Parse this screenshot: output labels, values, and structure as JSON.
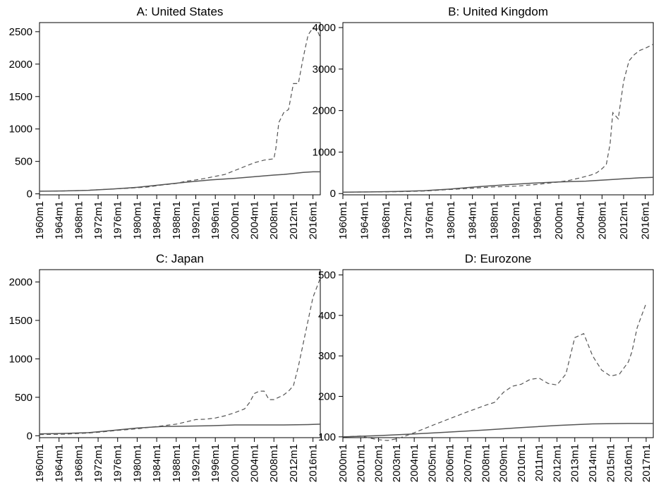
{
  "chart_data": [
    {
      "type": "line",
      "title": "A: United States",
      "xlabel": "",
      "ylabel": "",
      "x_ticks": [
        "1960m1",
        "1964m1",
        "1968m1",
        "1972m1",
        "1976m1",
        "1980m1",
        "1984m1",
        "1988m1",
        "1992m1",
        "1996m1",
        "2000m1",
        "2004m1",
        "2008m1",
        "2012m1",
        "2016m1"
      ],
      "xlim": [
        1960,
        2017.5
      ],
      "y_ticks": [
        0,
        500,
        1000,
        1500,
        2000,
        2500
      ],
      "ylim": [
        -15,
        2640
      ],
      "grid": false,
      "legend": "none",
      "series": [
        {
          "style": "solid",
          "x": [
            1960,
            1965,
            1970,
            1975,
            1980,
            1985,
            1990,
            1995,
            2000,
            2005,
            2008,
            2010,
            2012,
            2014,
            2016,
            2017.5
          ],
          "y": [
            40,
            45,
            55,
            75,
            100,
            140,
            180,
            215,
            240,
            270,
            290,
            300,
            315,
            330,
            340,
            340
          ]
        },
        {
          "style": "dashed",
          "x": [
            1960,
            1965,
            1970,
            1975,
            1978,
            1980,
            1982,
            1985,
            1988,
            1990,
            1992,
            1994,
            1996,
            1998,
            2000,
            2002,
            2004,
            2006,
            2007,
            2008,
            2008.4,
            2009,
            2010,
            2011,
            2012,
            2013,
            2014,
            2015,
            2016,
            2016.5,
            2017,
            2017.5
          ],
          "y": [
            40,
            45,
            55,
            75,
            85,
            95,
            105,
            135,
            160,
            195,
            215,
            240,
            270,
            300,
            360,
            420,
            480,
            520,
            530,
            540,
            700,
            1100,
            1250,
            1300,
            1700,
            1700,
            2100,
            2450,
            2560,
            2540,
            2500,
            2410
          ]
        }
      ]
    },
    {
      "type": "line",
      "title": "B: United Kingdom",
      "xlabel": "",
      "ylabel": "",
      "x_ticks": [
        "1960m1",
        "1964m1",
        "1968m1",
        "1972m1",
        "1976m1",
        "1980m1",
        "1984m1",
        "1988m1",
        "1992m1",
        "1996m1",
        "2000m1",
        "2004m1",
        "2008m1",
        "2012m1",
        "2016m1"
      ],
      "xlim": [
        1960,
        2017.5
      ],
      "y_ticks": [
        0,
        1000,
        2000,
        3000,
        4000
      ],
      "ylim": [
        -30,
        4120
      ],
      "grid": false,
      "legend": "none",
      "series": [
        {
          "style": "solid",
          "x": [
            1960,
            1965,
            1970,
            1975,
            1980,
            1985,
            1990,
            1995,
            2000,
            2005,
            2010,
            2015,
            2017.5
          ],
          "y": [
            35,
            40,
            50,
            70,
            110,
            165,
            210,
            250,
            280,
            300,
            340,
            380,
            390
          ]
        },
        {
          "style": "dashed",
          "x": [
            1960,
            1965,
            1970,
            1975,
            1980,
            1984,
            1988,
            1992,
            1996,
            2000,
            2002,
            2004,
            2006,
            2007,
            2008,
            2008.8,
            2009.5,
            2010,
            2011,
            2012,
            2013,
            2014,
            2015,
            2016,
            2017.5
          ],
          "y": [
            35,
            40,
            45,
            60,
            100,
            130,
            160,
            180,
            220,
            280,
            320,
            380,
            450,
            500,
            600,
            700,
            1200,
            1950,
            1800,
            2700,
            3200,
            3350,
            3450,
            3500,
            3600
          ]
        }
      ]
    },
    {
      "type": "line",
      "title": "C: Japan",
      "xlabel": "",
      "ylabel": "",
      "x_ticks": [
        "1960m1",
        "1964m1",
        "1968m1",
        "1972m1",
        "1976m1",
        "1980m1",
        "1984m1",
        "1988m1",
        "1992m1",
        "1996m1",
        "2000m1",
        "2004m1",
        "2008m1",
        "2012m1",
        "2016m1"
      ],
      "xlim": [
        1960,
        2017.5
      ],
      "y_ticks": [
        0,
        500,
        1000,
        1500,
        2000
      ],
      "ylim": [
        -25,
        2160
      ],
      "grid": false,
      "legend": "none",
      "series": [
        {
          "style": "solid",
          "x": [
            1960,
            1965,
            1970,
            1975,
            1980,
            1985,
            1990,
            1995,
            2000,
            2005,
            2010,
            2015,
            2017.5
          ],
          "y": [
            25,
            30,
            40,
            70,
            100,
            120,
            125,
            130,
            140,
            140,
            140,
            145,
            150
          ]
        },
        {
          "style": "dashed",
          "x": [
            1960,
            1965,
            1970,
            1973,
            1976,
            1980,
            1984,
            1988,
            1990,
            1992,
            1994,
            1996,
            1998,
            2000,
            2002,
            2003,
            2004,
            2005,
            2006,
            2007,
            2008,
            2009,
            2010,
            2011,
            2012,
            2013,
            2014,
            2015,
            2016,
            2017.5
          ],
          "y": [
            15,
            20,
            35,
            50,
            70,
            90,
            120,
            150,
            180,
            210,
            215,
            230,
            260,
            300,
            350,
            430,
            550,
            580,
            580,
            470,
            470,
            500,
            530,
            580,
            650,
            900,
            1200,
            1500,
            1800,
            2050
          ]
        }
      ]
    },
    {
      "type": "line",
      "title": "D: Eurozone",
      "xlabel": "",
      "ylabel": "",
      "x_ticks": [
        "2000m1",
        "2001m1",
        "2002m1",
        "2003m1",
        "2004m1",
        "2005m1",
        "2006m1",
        "2007m1",
        "2008m1",
        "2009m1",
        "2010m1",
        "2011m1",
        "2012m1",
        "2013m1",
        "2014m1",
        "2015m1",
        "2016m1",
        "2017m1"
      ],
      "xlim": [
        2000,
        2017.4
      ],
      "y_ticks": [
        100,
        200,
        300,
        400,
        500
      ],
      "ylim": [
        98,
        513
      ],
      "grid": false,
      "legend": "none",
      "series": [
        {
          "style": "solid",
          "x": [
            2000,
            2002,
            2004,
            2006,
            2008,
            2010,
            2012,
            2014,
            2016,
            2017.4
          ],
          "y": [
            100,
            103,
            107,
            112,
            117,
            123,
            128,
            132,
            133,
            133
          ]
        },
        {
          "style": "dashed",
          "x": [
            2000,
            2000.5,
            2001,
            2001.5,
            2002,
            2002.5,
            2003,
            2003.5,
            2004,
            2005,
            2006,
            2007,
            2008,
            2008.5,
            2009,
            2009.5,
            2010,
            2010.5,
            2011,
            2011.5,
            2012,
            2012.5,
            2013,
            2013.5,
            2014,
            2014.5,
            2015,
            2015.5,
            2016,
            2016.2,
            2016.5,
            2017
          ],
          "y": [
            100,
            101,
            102,
            97,
            93,
            91,
            95,
            102,
            110,
            128,
            145,
            162,
            178,
            185,
            210,
            225,
            230,
            242,
            245,
            232,
            228,
            255,
            345,
            355,
            300,
            265,
            250,
            255,
            285,
            310,
            370,
            430
          ]
        }
      ]
    }
  ]
}
